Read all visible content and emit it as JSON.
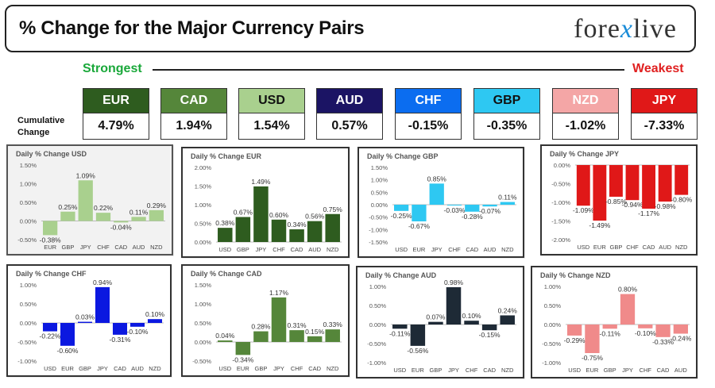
{
  "header": {
    "title": "% Change for the Major Currency Pairs",
    "logo_left": "fore",
    "logo_x": "x",
    "logo_right": "live"
  },
  "scale": {
    "strongest_label": "Strongest",
    "weakest_label": "Weakest",
    "cumulative_label": "Cumulative Change"
  },
  "currencies": [
    {
      "code": "EUR",
      "value": "4.79%",
      "bg": "#2e5c1f",
      "fg": "#ffffff"
    },
    {
      "code": "CAD",
      "value": "1.94%",
      "bg": "#55863a",
      "fg": "#ffffff"
    },
    {
      "code": "USD",
      "value": "1.54%",
      "bg": "#a9d08e",
      "fg": "#111111"
    },
    {
      "code": "AUD",
      "value": "0.57%",
      "bg": "#1b1464",
      "fg": "#ffffff"
    },
    {
      "code": "CHF",
      "value": "-0.15%",
      "bg": "#0b6df0",
      "fg": "#ffffff"
    },
    {
      "code": "GBP",
      "value": "-0.35%",
      "bg": "#2ec8f2",
      "fg": "#111111"
    },
    {
      "code": "NZD",
      "value": "-1.02%",
      "bg": "#f4a6a6",
      "fg": "#ffffff"
    },
    {
      "code": "JPY",
      "value": "-7.33%",
      "bg": "#e01818",
      "fg": "#ffffff"
    }
  ],
  "chart_data": [
    {
      "type": "bar",
      "title": "Daily % Change USD",
      "color": "#a9d08e",
      "categories": [
        "EUR",
        "GBP",
        "JPY",
        "CHF",
        "CAD",
        "AUD",
        "NZD"
      ],
      "values": [
        -0.38,
        0.25,
        1.09,
        0.22,
        -0.04,
        0.11,
        0.29
      ],
      "labels": [
        "-0.38%",
        "0.25%",
        "1.09%",
        "0.22%",
        "-0.04%",
        "0.11%",
        "0.29%"
      ],
      "ylim": [
        -0.5,
        1.5
      ],
      "yticks": [
        "1.50%",
        "1.00%",
        "0.50%",
        "0.00%",
        "-0.50%"
      ],
      "tickvals": [
        1.5,
        1.0,
        0.5,
        0.0,
        -0.5
      ],
      "grid": false
    },
    {
      "type": "bar",
      "title": "Daily % Change EUR",
      "color": "#2e5c1f",
      "categories": [
        "USD",
        "GBP",
        "JPY",
        "CHF",
        "CAD",
        "AUD",
        "NZD"
      ],
      "values": [
        0.38,
        0.67,
        1.49,
        0.6,
        0.34,
        0.56,
        0.75
      ],
      "labels": [
        "0.38%",
        "0.67%",
        "1.49%",
        "0.60%",
        "0.34%",
        "0.56%",
        "0.75%"
      ],
      "ylim": [
        0,
        1.5
      ],
      "yticks": [
        "2.00%",
        "1.50%",
        "1.00%",
        "0.50%",
        "0.00%"
      ],
      "tickvals": [
        2.0,
        1.5,
        1.0,
        0.5,
        0.0
      ],
      "grid": false
    },
    {
      "type": "bar",
      "title": "Daily % Change GBP",
      "color": "#2ec8f2",
      "categories": [
        "USD",
        "EUR",
        "JPY",
        "CHF",
        "CAD",
        "AUD",
        "NZD"
      ],
      "values": [
        -0.25,
        -0.67,
        0.85,
        -0.03,
        -0.28,
        -0.07,
        0.11
      ],
      "labels": [
        "-0.25%",
        "-0.67%",
        "0.85%",
        "-0.03%",
        "-0.28%",
        "-0.07%",
        "0.11%"
      ],
      "ylim": [
        -1.5,
        1.5
      ],
      "yticks": [
        "1.50%",
        "1.00%",
        "0.50%",
        "0.00%",
        "-0.50%",
        "-1.00%",
        "-1.50%"
      ],
      "tickvals": [
        1.5,
        1.0,
        0.5,
        0.0,
        -0.5,
        -1.0,
        -1.5
      ],
      "grid": false
    },
    {
      "type": "bar",
      "title": "Daily % Change JPY",
      "color": "#e01818",
      "categories": [
        "USD",
        "EUR",
        "GBP",
        "CHF",
        "CAD",
        "AUD",
        "NZD"
      ],
      "values": [
        -1.09,
        -1.49,
        -0.85,
        -0.94,
        -1.17,
        -0.98,
        -0.8
      ],
      "labels": [
        "-1.09%",
        "-1.49%",
        "-0.85%",
        "-0.94%",
        "-1.17%",
        "-0.98%",
        "-0.80%"
      ],
      "ylim": [
        -1.5,
        0
      ],
      "yticks": [
        "0.00%",
        "-0.50%",
        "-1.00%",
        "-1.50%",
        "-2.00%"
      ],
      "tickvals": [
        0.0,
        -0.5,
        -1.0,
        -1.5,
        -2.0
      ],
      "grid": false
    },
    {
      "type": "bar",
      "title": "Daily % Change CHF",
      "color": "#0b18e0",
      "categories": [
        "USD",
        "EUR",
        "GBP",
        "JPY",
        "CAD",
        "AUD",
        "NZD"
      ],
      "values": [
        -0.22,
        -0.6,
        0.03,
        0.94,
        -0.31,
        -0.1,
        0.1
      ],
      "labels": [
        "-0.22%",
        "-0.60%",
        "0.03%",
        "0.94%",
        "-0.31%",
        "-0.10%",
        "0.10%"
      ],
      "ylim": [
        -1.0,
        1.0
      ],
      "yticks": [
        "1.00%",
        "0.50%",
        "0.00%",
        "-0.50%",
        "-1.00%"
      ],
      "tickvals": [
        1.0,
        0.5,
        0.0,
        -0.5,
        -1.0
      ],
      "grid": false
    },
    {
      "type": "bar",
      "title": "Daily % Change CAD",
      "color": "#55863a",
      "categories": [
        "USD",
        "EUR",
        "GBP",
        "JPY",
        "CHF",
        "CAD",
        "NZD"
      ],
      "values": [
        0.04,
        -0.34,
        0.28,
        1.17,
        0.31,
        0.15,
        0.33
      ],
      "labels": [
        "0.04%",
        "-0.34%",
        "0.28%",
        "1.17%",
        "0.31%",
        "0.15%",
        "0.33%"
      ],
      "ylim": [
        -0.5,
        1.5
      ],
      "yticks": [
        "1.50%",
        "1.00%",
        "0.50%",
        "0.00%",
        "-0.50%"
      ],
      "tickvals": [
        1.5,
        1.0,
        0.5,
        0.0,
        -0.5
      ],
      "grid": false
    },
    {
      "type": "bar",
      "title": "Daily % Change AUD",
      "color": "#1e2a36",
      "categories": [
        "USD",
        "EUR",
        "GBP",
        "JPY",
        "CHF",
        "CAD",
        "NZD"
      ],
      "values": [
        -0.11,
        -0.56,
        0.07,
        0.98,
        0.1,
        -0.15,
        0.24
      ],
      "labels": [
        "-0.11%",
        "-0.56%",
        "0.07%",
        "0.98%",
        "0.10%",
        "-0.15%",
        "0.24%"
      ],
      "ylim": [
        -1.0,
        1.0
      ],
      "yticks": [
        "1.00%",
        "0.50%",
        "0.00%",
        "-0.50%",
        "-1.00%"
      ],
      "tickvals": [
        1.0,
        0.5,
        0.0,
        -0.5,
        -1.0
      ],
      "grid": false
    },
    {
      "type": "bar",
      "title": "Daily % Change NZD",
      "color": "#f08a8a",
      "categories": [
        "USD",
        "EUR",
        "GBP",
        "JPY",
        "CHF",
        "CAD",
        "AUD"
      ],
      "values": [
        -0.29,
        -0.75,
        -0.11,
        0.8,
        -0.1,
        -0.33,
        -0.24
      ],
      "labels": [
        "-0.29%",
        "-0.75%",
        "-0.11%",
        "0.80%",
        "-0.10%",
        "-0.33%",
        "-0.24%"
      ],
      "ylim": [
        -1.0,
        1.0
      ],
      "yticks": [
        "1.00%",
        "0.50%",
        "0.00%",
        "-0.50%",
        "-1.00%"
      ],
      "tickvals": [
        1.0,
        0.5,
        0.0,
        -0.5,
        -1.0
      ],
      "grid": false
    }
  ]
}
